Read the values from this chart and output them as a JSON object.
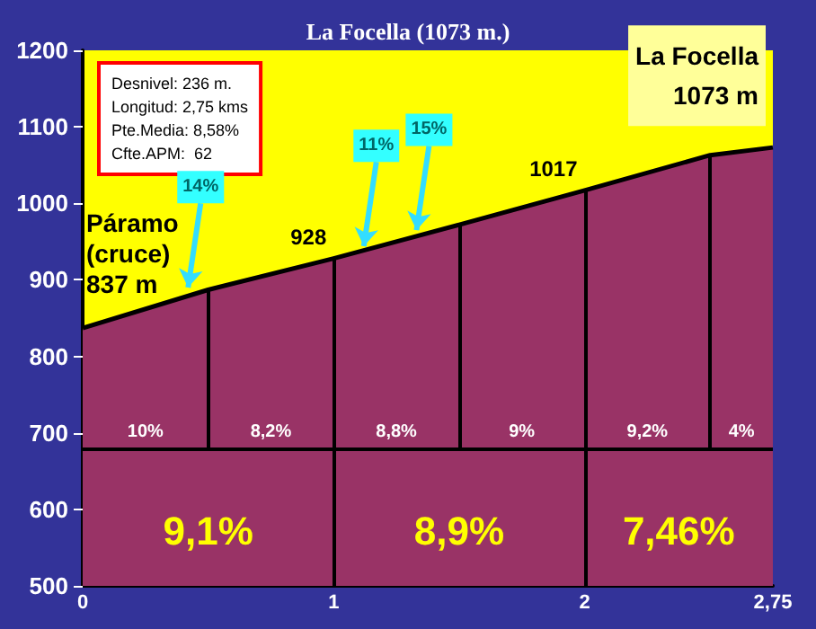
{
  "chart_data": {
    "type": "area",
    "title": "La Focella (1073 m.)",
    "x": [
      0,
      0.5,
      1,
      1.5,
      2,
      2.5,
      2.75
    ],
    "series": [
      {
        "color": "#993366",
        "values": [
          837,
          887,
          928,
          972,
          1017,
          1063,
          1073
        ]
      }
    ],
    "xlim": [
      0,
      2.75
    ],
    "xticks": [
      0,
      1,
      2,
      {
        "value": 2.75,
        "label": "2,75"
      }
    ],
    "ylim": [
      500,
      1200
    ],
    "yticks": [
      500,
      600,
      700,
      800,
      900,
      1000,
      1100,
      1200
    ],
    "grid": false,
    "ref_lines": [
      {
        "axis": "y",
        "value": 680,
        "label": null
      },
      {
        "axis": "x",
        "value": 0.5,
        "label": null
      },
      {
        "axis": "x",
        "value": 1,
        "label": null
      },
      {
        "axis": "x",
        "value": 1.5,
        "label": null
      },
      {
        "axis": "x",
        "value": 2,
        "label": null
      },
      {
        "axis": "x",
        "value": 2.5,
        "label": null
      }
    ],
    "annotations": [
      "Desnivel: 236 m.\nLongitud: 2,75 kms\nPte.Media: 8,58%\nCfte.APM:  62",
      {
        "text": "La Focella\n1073 m",
        "x": 2.75,
        "y": 1073
      },
      {
        "text": "Páramo\n(cruce)\n837 m",
        "x": 0,
        "y": 837
      },
      {
        "text": "928",
        "x": 1,
        "y": 928
      },
      {
        "text": "1017",
        "x": 2,
        "y": 1017
      },
      {
        "text": "14%",
        "x": 0.42,
        "y": 890
      },
      {
        "text": "11%",
        "x": 1.12,
        "y": 944
      },
      {
        "text": "15%",
        "x": 1.33,
        "y": 965
      },
      "10%",
      "8,2%",
      "8,8%",
      "9%",
      "9,2%",
      "4%",
      "9,1%",
      "8,9%",
      "7,46%"
    ]
  }
}
